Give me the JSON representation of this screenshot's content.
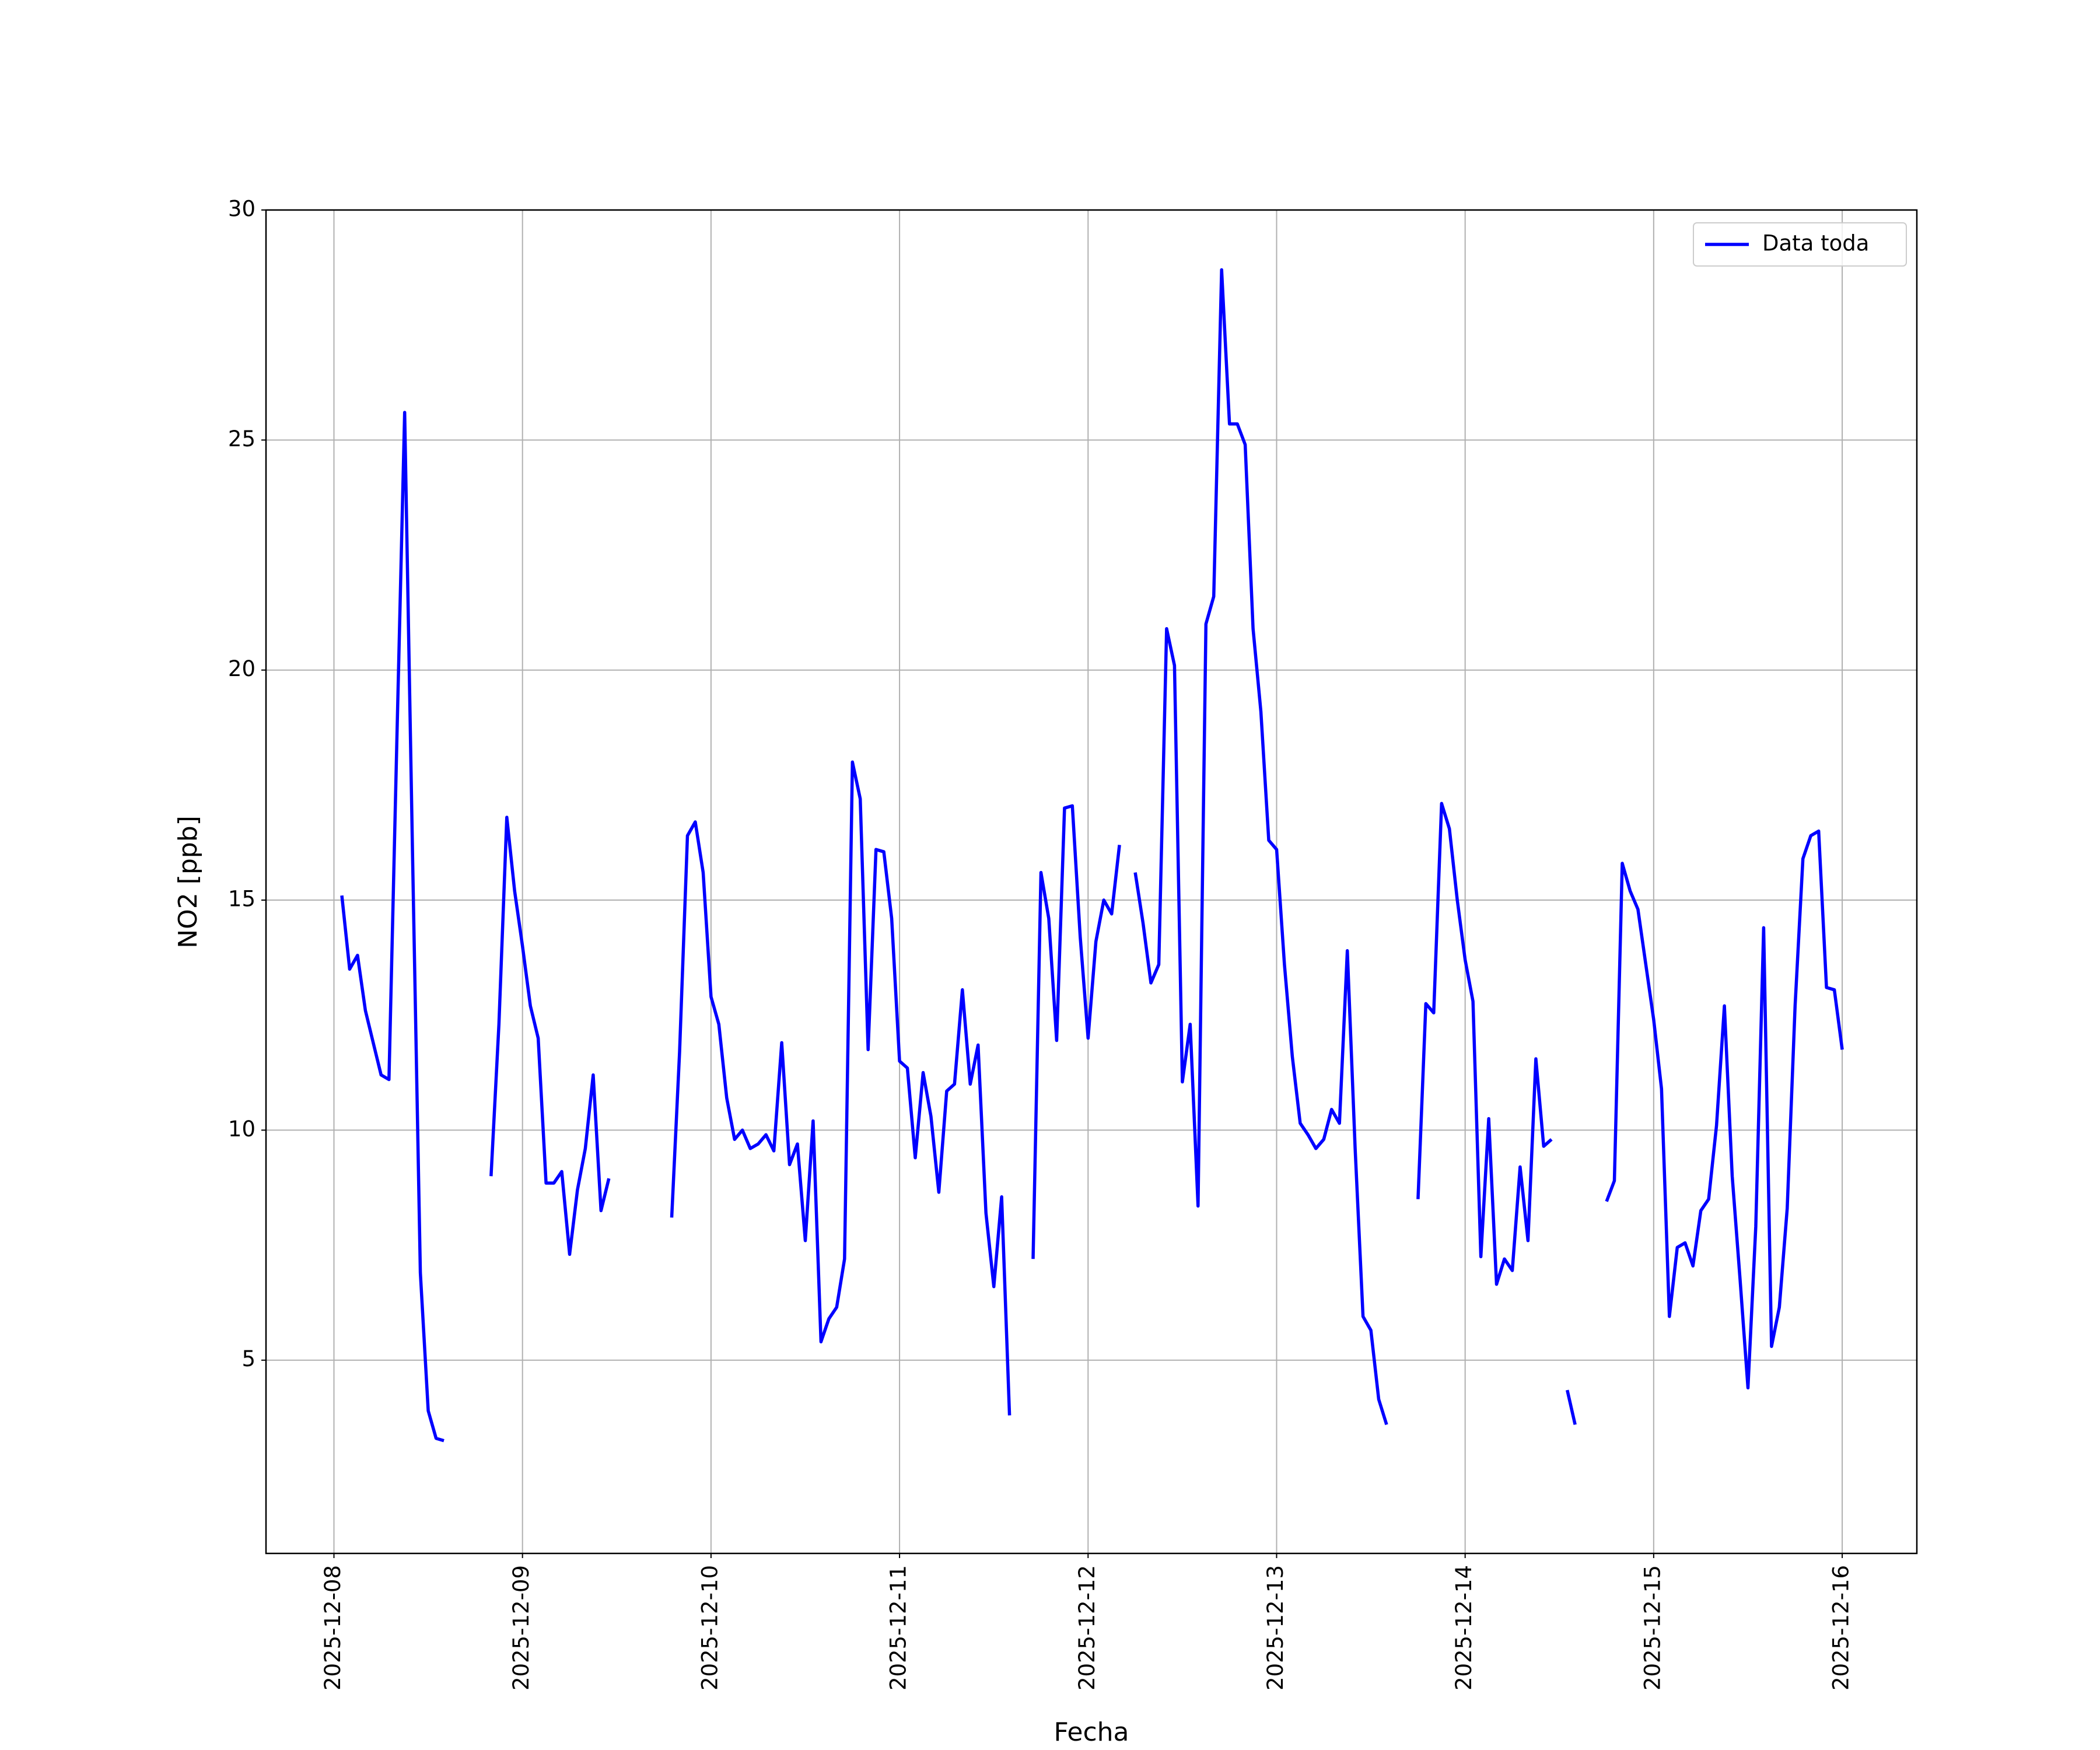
{
  "chart_data": {
    "type": "line",
    "xlabel": "Fecha",
    "ylabel": "NO2 [ppb]",
    "x": [
      "2025-12-08 01:00",
      "2025-12-08 02:00",
      "2025-12-08 03:00",
      "2025-12-08 04:00",
      "2025-12-08 05:00",
      "2025-12-08 06:00",
      "2025-12-08 07:00",
      "2025-12-08 08:00",
      "2025-12-08 09:00",
      "2025-12-08 10:00",
      "2025-12-08 11:00",
      "2025-12-08 12:00",
      "2025-12-08 13:00",
      "2025-12-08 14:00",
      "2025-12-08 15:00",
      "2025-12-08 20:00",
      "2025-12-08 21:00",
      "2025-12-08 22:00",
      "2025-12-08 23:00",
      "2025-12-09 00:00",
      "2025-12-09 01:00",
      "2025-12-09 02:00",
      "2025-12-09 03:00",
      "2025-12-09 04:00",
      "2025-12-09 05:00",
      "2025-12-09 06:00",
      "2025-12-09 07:00",
      "2025-12-09 08:00",
      "2025-12-09 09:00",
      "2025-12-09 10:00",
      "2025-12-09 11:00",
      "2025-12-09 12:00",
      "2025-12-09 19:00",
      "2025-12-09 20:00",
      "2025-12-09 21:00",
      "2025-12-09 22:00",
      "2025-12-09 23:00",
      "2025-12-10 00:00",
      "2025-12-10 01:00",
      "2025-12-10 02:00",
      "2025-12-10 03:00",
      "2025-12-10 04:00",
      "2025-12-10 05:00",
      "2025-12-10 06:00",
      "2025-12-10 07:00",
      "2025-12-10 08:00",
      "2025-12-10 09:00",
      "2025-12-10 10:00",
      "2025-12-10 11:00",
      "2025-12-10 12:00",
      "2025-12-10 13:00",
      "2025-12-10 14:00",
      "2025-12-10 15:00",
      "2025-12-10 16:00",
      "2025-12-10 17:00",
      "2025-12-10 18:00",
      "2025-12-10 19:00",
      "2025-12-10 20:00",
      "2025-12-10 21:00",
      "2025-12-10 22:00",
      "2025-12-10 23:00",
      "2025-12-11 00:00",
      "2025-12-11 01:00",
      "2025-12-11 02:00",
      "2025-12-11 03:00",
      "2025-12-11 04:00",
      "2025-12-11 05:00",
      "2025-12-11 06:00",
      "2025-12-11 07:00",
      "2025-12-11 08:00",
      "2025-12-11 09:00",
      "2025-12-11 10:00",
      "2025-12-11 11:00",
      "2025-12-11 12:00",
      "2025-12-11 13:00",
      "2025-12-11 14:00",
      "2025-12-11 15:00",
      "2025-12-11 17:00",
      "2025-12-11 18:00",
      "2025-12-11 19:00",
      "2025-12-11 20:00",
      "2025-12-11 21:00",
      "2025-12-11 22:00",
      "2025-12-11 23:00",
      "2025-12-12 00:00",
      "2025-12-12 01:00",
      "2025-12-12 02:00",
      "2025-12-12 03:00",
      "2025-12-12 04:00",
      "2025-12-12 05:00",
      "2025-12-12 06:00",
      "2025-12-12 07:00",
      "2025-12-12 08:00",
      "2025-12-12 09:00",
      "2025-12-12 10:00",
      "2025-12-12 11:00",
      "2025-12-12 12:00",
      "2025-12-12 13:00",
      "2025-12-12 14:00",
      "2025-12-12 15:00",
      "2025-12-12 16:00",
      "2025-12-12 17:00",
      "2025-12-12 18:00",
      "2025-12-12 19:00",
      "2025-12-12 20:00",
      "2025-12-12 21:00",
      "2025-12-12 22:00",
      "2025-12-12 23:00",
      "2025-12-13 00:00",
      "2025-12-13 01:00",
      "2025-12-13 02:00",
      "2025-12-13 03:00",
      "2025-12-13 04:00",
      "2025-12-13 05:00",
      "2025-12-13 06:00",
      "2025-12-13 07:00",
      "2025-12-13 08:00",
      "2025-12-13 09:00",
      "2025-12-13 10:00",
      "2025-12-13 11:00",
      "2025-12-13 12:00",
      "2025-12-13 13:00",
      "2025-12-13 14:00",
      "2025-12-13 15:00",
      "2025-12-13 18:00",
      "2025-12-13 19:00",
      "2025-12-13 20:00",
      "2025-12-13 21:00",
      "2025-12-13 22:00",
      "2025-12-13 23:00",
      "2025-12-14 00:00",
      "2025-12-14 01:00",
      "2025-12-14 02:00",
      "2025-12-14 03:00",
      "2025-12-14 04:00",
      "2025-12-14 05:00",
      "2025-12-14 06:00",
      "2025-12-14 07:00",
      "2025-12-14 08:00",
      "2025-12-14 09:00",
      "2025-12-14 10:00",
      "2025-12-14 11:00",
      "2025-12-14 12:00",
      "2025-12-14 13:00",
      "2025-12-14 14:00",
      "2025-12-14 15:00",
      "2025-12-14 18:00",
      "2025-12-14 19:00",
      "2025-12-14 20:00",
      "2025-12-14 21:00",
      "2025-12-14 22:00",
      "2025-12-14 23:00",
      "2025-12-15 00:00",
      "2025-12-15 01:00",
      "2025-12-15 02:00",
      "2025-12-15 03:00",
      "2025-12-15 04:00",
      "2025-12-15 05:00",
      "2025-12-15 06:00",
      "2025-12-15 07:00",
      "2025-12-15 08:00",
      "2025-12-15 09:00",
      "2025-12-15 10:00",
      "2025-12-15 11:00",
      "2025-12-15 12:00",
      "2025-12-15 13:00",
      "2025-12-15 14:00",
      "2025-12-15 15:00",
      "2025-12-15 16:00",
      "2025-12-15 17:00",
      "2025-12-15 18:00",
      "2025-12-15 19:00",
      "2025-12-15 20:00",
      "2025-12-15 21:00",
      "2025-12-15 22:00",
      "2025-12-15 23:00",
      "2025-12-16 00:00"
    ],
    "series": [
      {
        "name": "Data toda",
        "color": "#0000ff",
        "values": [
          15.1,
          13.5,
          13.8,
          12.6,
          11.9,
          11.2,
          11.1,
          18.4,
          25.6,
          16.0,
          6.9,
          3.9,
          3.3,
          3.25,
          null,
          9.0,
          12.3,
          16.8,
          15.2,
          14.0,
          12.7,
          12.0,
          8.85,
          8.85,
          9.1,
          7.3,
          8.7,
          9.6,
          11.2,
          8.25,
          8.95,
          null,
          8.1,
          11.7,
          16.4,
          16.7,
          15.6,
          12.9,
          12.3,
          10.7,
          9.8,
          10.0,
          9.6,
          9.7,
          9.9,
          9.55,
          11.9,
          9.25,
          9.7,
          7.6,
          10.2,
          5.4,
          5.9,
          6.15,
          7.2,
          18.0,
          17.2,
          11.75,
          16.1,
          16.05,
          14.6,
          11.5,
          11.35,
          9.4,
          11.25,
          10.3,
          8.65,
          10.85,
          11.0,
          13.05,
          11.0,
          11.85,
          8.2,
          6.6,
          8.55,
          3.8,
          null,
          7.2,
          15.6,
          14.6,
          11.95,
          17.0,
          17.05,
          14.2,
          12.0,
          14.1,
          15.0,
          14.7,
          16.2,
          null,
          15.6,
          14.5,
          13.2,
          13.6,
          20.9,
          20.1,
          11.05,
          12.3,
          8.35,
          21.0,
          21.6,
          28.7,
          25.35,
          25.35,
          24.9,
          20.9,
          19.1,
          16.3,
          16.1,
          13.6,
          11.6,
          10.15,
          9.9,
          9.6,
          9.8,
          10.45,
          10.15,
          13.9,
          9.6,
          5.95,
          5.65,
          4.15,
          3.6,
          null,
          8.5,
          12.75,
          12.55,
          17.1,
          16.55,
          15.0,
          13.7,
          12.8,
          7.25,
          10.25,
          6.65,
          7.2,
          6.95,
          9.2,
          7.6,
          11.55,
          9.65,
          9.8,
          null,
          4.35,
          3.6,
          null,
          8.45,
          8.9,
          15.8,
          15.2,
          14.8,
          13.6,
          12.4,
          10.9,
          5.95,
          7.45,
          7.55,
          7.05,
          8.25,
          8.5,
          10.1,
          12.7,
          9.0,
          6.75,
          4.4,
          7.9,
          14.4,
          5.3,
          6.15,
          8.3,
          12.7,
          15.9,
          16.4,
          16.5,
          13.1,
          13.05,
          11.75
        ]
      }
    ],
    "xlim": [
      "2025-12-07 15:21",
      "2025-12-16 09:30"
    ],
    "xticks": [
      "2025-12-08",
      "2025-12-09",
      "2025-12-10",
      "2025-12-11",
      "2025-12-12",
      "2025-12-13",
      "2025-12-14",
      "2025-12-15",
      "2025-12-16"
    ],
    "ylim": [
      0.8,
      30
    ],
    "yticks": [
      5,
      10,
      15,
      20,
      25,
      30
    ],
    "grid": true,
    "legend": "upper right"
  }
}
